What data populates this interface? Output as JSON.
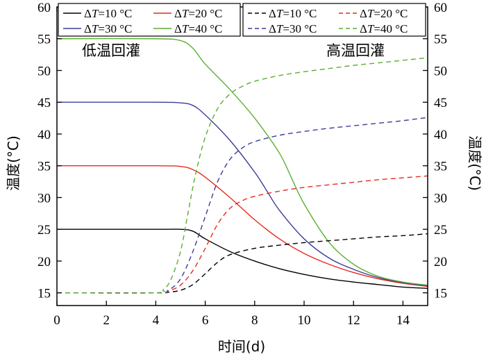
{
  "chart_data": {
    "type": "line",
    "xlabel": "时间(d)",
    "ylabel_left": "温度(°C)",
    "ylabel_right": "温度(°C)",
    "xlim": [
      0,
      15
    ],
    "ylim": [
      13,
      60
    ],
    "xticks": [
      0,
      2,
      4,
      6,
      8,
      10,
      12,
      14
    ],
    "yticks": [
      15,
      20,
      25,
      30,
      35,
      40,
      45,
      50,
      55,
      60
    ],
    "grid": false,
    "annotations": {
      "low": "低温回灌",
      "high": "高温回灌"
    },
    "legend_left": [
      {
        "delta": "Δ",
        "italic": "T",
        "rest": "=10 °C",
        "color": "#000000",
        "dash": "solid"
      },
      {
        "delta": "Δ",
        "italic": "T",
        "rest": "=20 °C",
        "color": "#e8291c",
        "dash": "solid"
      },
      {
        "delta": "Δ",
        "italic": "T",
        "rest": "=30 °C",
        "color": "#3c3c96",
        "dash": "solid"
      },
      {
        "delta": "Δ",
        "italic": "T",
        "rest": "=40 °C",
        "color": "#5aae31",
        "dash": "solid"
      }
    ],
    "legend_right": [
      {
        "delta": "Δ",
        "italic": "T",
        "rest": "=10 °C",
        "color": "#000000",
        "dash": "dashed"
      },
      {
        "delta": "Δ",
        "italic": "T",
        "rest": "=20 °C",
        "color": "#e8291c",
        "dash": "dashed"
      },
      {
        "delta": "Δ",
        "italic": "T",
        "rest": "=30 °C",
        "color": "#3c3c96",
        "dash": "dashed"
      },
      {
        "delta": "Δ",
        "italic": "T",
        "rest": "=40 °C",
        "color": "#5aae31",
        "dash": "dashed"
      }
    ],
    "series": [
      {
        "group": "low",
        "color": "#000000",
        "dash": "solid",
        "x": [
          0,
          4,
          5,
          5.5,
          6,
          7,
          8,
          9,
          10,
          11,
          12,
          13,
          14,
          15
        ],
        "y": [
          25,
          25,
          25,
          24.7,
          23.5,
          21.5,
          20.0,
          18.8,
          17.9,
          17.2,
          16.7,
          16.3,
          15.9,
          15.7
        ]
      },
      {
        "group": "low",
        "color": "#e8291c",
        "dash": "solid",
        "x": [
          0,
          4,
          5,
          5.5,
          6,
          7,
          8,
          9,
          10,
          11,
          12,
          13,
          14,
          15
        ],
        "y": [
          35,
          35,
          34.9,
          34.4,
          33.2,
          30.0,
          26.5,
          23.5,
          21.2,
          19.5,
          18.2,
          17.2,
          16.5,
          16.0
        ]
      },
      {
        "group": "low",
        "color": "#3c3c96",
        "dash": "solid",
        "x": [
          0,
          4,
          5,
          5.5,
          6,
          7,
          8,
          8.5,
          9,
          10,
          11,
          12,
          13,
          14,
          15
        ],
        "y": [
          45,
          45,
          44.9,
          44.5,
          43.0,
          39.0,
          34.0,
          31.0,
          28.0,
          23.5,
          20.5,
          18.7,
          17.4,
          16.6,
          16.1
        ]
      },
      {
        "group": "low",
        "color": "#5aae31",
        "dash": "solid",
        "x": [
          0,
          4,
          5,
          5.5,
          6,
          7,
          8,
          9,
          9.5,
          10,
          11,
          12,
          13,
          14,
          15
        ],
        "y": [
          55,
          55,
          54.7,
          53.5,
          51.0,
          47.0,
          42.5,
          37.0,
          33.0,
          29.0,
          23.0,
          19.5,
          17.6,
          16.7,
          16.2
        ]
      },
      {
        "group": "high",
        "color": "#000000",
        "dash": "dashed",
        "x": [
          0,
          4,
          4.5,
          5,
          5.5,
          6,
          6.5,
          7,
          8,
          9,
          10,
          11,
          12,
          13,
          14,
          15
        ],
        "y": [
          15,
          15,
          15.1,
          15.4,
          16.3,
          18.0,
          19.8,
          21.0,
          22.0,
          22.5,
          22.9,
          23.2,
          23.5,
          23.8,
          24.0,
          24.3
        ]
      },
      {
        "group": "high",
        "color": "#e8291c",
        "dash": "dashed",
        "x": [
          0,
          4,
          4.5,
          5,
          5.5,
          6,
          6.5,
          7,
          7.5,
          8,
          9,
          10,
          11,
          12,
          13,
          14,
          15
        ],
        "y": [
          15,
          15,
          15.3,
          16.2,
          18.5,
          22.0,
          25.8,
          28.3,
          29.5,
          30.2,
          31.0,
          31.6,
          32.0,
          32.4,
          32.8,
          33.1,
          33.4
        ]
      },
      {
        "group": "high",
        "color": "#3c3c96",
        "dash": "dashed",
        "x": [
          0,
          4,
          4.5,
          5,
          5.5,
          6,
          6.5,
          7,
          7.5,
          8,
          9,
          10,
          11,
          12,
          13,
          14,
          15
        ],
        "y": [
          15,
          15,
          15.4,
          17.2,
          21.5,
          27.0,
          32.5,
          36.0,
          37.8,
          38.8,
          39.8,
          40.4,
          40.9,
          41.3,
          41.7,
          42.1,
          42.6
        ]
      },
      {
        "group": "high",
        "color": "#5aae31",
        "dash": "dashed",
        "x": [
          0,
          4,
          4.3,
          4.6,
          5,
          5.3,
          5.6,
          6,
          6.5,
          7,
          7.5,
          8,
          9,
          10,
          11,
          12,
          13,
          14,
          15
        ],
        "y": [
          15,
          15,
          15.5,
          17.0,
          21.5,
          27.5,
          33.5,
          39.5,
          44.0,
          46.3,
          47.5,
          48.3,
          49.2,
          49.8,
          50.3,
          50.8,
          51.2,
          51.6,
          52.0
        ]
      }
    ]
  }
}
